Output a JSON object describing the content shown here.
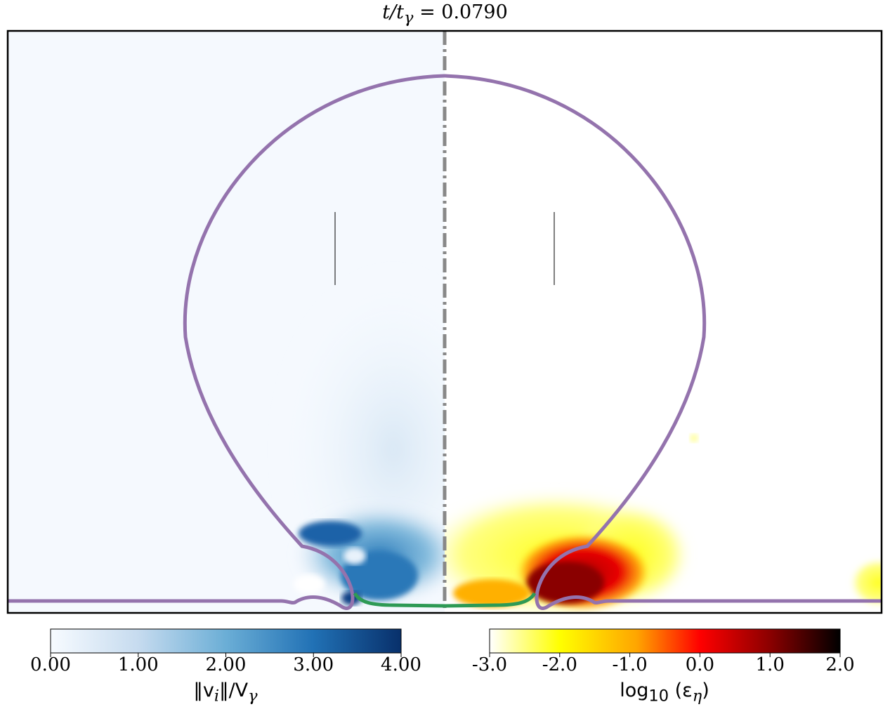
{
  "title": {
    "prefix": "t/t",
    "sub": "γ",
    "equals": " = ",
    "value": "0.0790"
  },
  "chart_data": [
    {
      "type": "heatmap",
      "panel": "left",
      "quantity": "velocity magnitude",
      "colormap": "Blues",
      "colorbar": {
        "label_main": "‖v",
        "label_sub": "i",
        "label_mid": "‖/V",
        "label_sub2": "γ",
        "range": [
          0,
          4
        ],
        "ticks": [
          "0.00",
          "1.00",
          "2.00",
          "3.00",
          "4.00"
        ]
      }
    },
    {
      "type": "heatmap",
      "panel": "right",
      "quantity": "log10 dissipation",
      "colormap": "hot_r",
      "colorbar": {
        "label_main": "log",
        "label_sub": "10",
        "label_mid": " (ε",
        "label_sub2": "η",
        "label_end": ")",
        "range": [
          -3,
          2
        ],
        "ticks": [
          "-3.0",
          "-2.0",
          "-1.0",
          "0.0",
          "1.0",
          "2.0"
        ]
      }
    }
  ],
  "colors": {
    "interface": "#9473ad",
    "film": "#2e9a55",
    "axis_line": "#888888",
    "frame": "#000000"
  }
}
